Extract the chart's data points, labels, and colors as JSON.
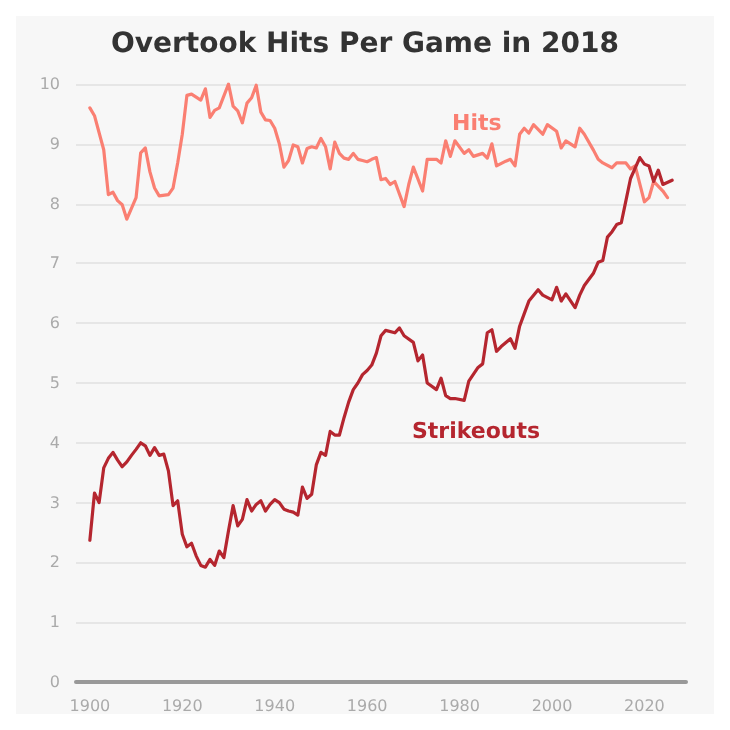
{
  "chart_data": {
    "type": "line",
    "title": "Overtook Hits Per Game in 2018",
    "xlim": [
      1897,
      2029
    ],
    "xticks": [
      1900,
      1920,
      1940,
      1960,
      1980,
      2000,
      2020
    ],
    "ylim": [
      0,
      10
    ],
    "yticks": [
      0,
      1,
      2,
      3,
      4,
      5,
      6,
      7,
      8,
      9,
      10
    ],
    "grid": "y",
    "marker": "none",
    "line_style": "solid",
    "annotations": [
      "Hits",
      "Strikeouts"
    ],
    "series": [
      {
        "color": "#fa7f72",
        "x": [
          1900,
          1901,
          1903,
          1904,
          1905,
          1906,
          1907,
          1908,
          1910,
          1911,
          1912,
          1913,
          1914,
          1915,
          1917,
          1918,
          1919,
          1920,
          1921,
          1922,
          1924,
          1925,
          1926,
          1927,
          1928,
          1930,
          1931,
          1932,
          1933,
          1934,
          1935,
          1936,
          1937,
          1938,
          1939,
          1940,
          1941,
          1942,
          1943,
          1944,
          1945,
          1946,
          1947,
          1948,
          1949,
          1950,
          1951,
          1952,
          1953,
          1954,
          1955,
          1956,
          1957,
          1958,
          1959,
          1960,
          1961,
          1962,
          1963,
          1964,
          1965,
          1966,
          1968,
          1969,
          1970,
          1972,
          1973,
          1975,
          1976,
          1977,
          1978,
          1979,
          1981,
          1982,
          1983,
          1985,
          1986,
          1987,
          1988,
          1990,
          1991,
          1992,
          1993,
          1994,
          1995,
          1996,
          1998,
          1999,
          2001,
          2002,
          2003,
          2005,
          2006,
          2007,
          2009,
          2010,
          2011,
          2013,
          2014,
          2016,
          2017,
          2018,
          2020,
          2021,
          2022,
          2024,
          2025
        ],
        "values": [
          9.6,
          9.47,
          8.9,
          8.15,
          8.19,
          8.05,
          7.98,
          7.74,
          8.1,
          8.85,
          8.93,
          8.53,
          8.26,
          8.13,
          8.15,
          8.26,
          8.68,
          9.16,
          9.81,
          9.83,
          9.73,
          9.92,
          9.44,
          9.56,
          9.6,
          10.0,
          9.63,
          9.55,
          9.35,
          9.68,
          9.77,
          9.98,
          9.53,
          9.4,
          9.39,
          9.26,
          9.0,
          8.61,
          8.72,
          8.98,
          8.95,
          8.68,
          8.92,
          8.95,
          8.93,
          9.09,
          8.95,
          8.58,
          9.03,
          8.84,
          8.76,
          8.74,
          8.84,
          8.74,
          8.72,
          8.7,
          8.74,
          8.77,
          8.4,
          8.42,
          8.32,
          8.37,
          7.95,
          8.32,
          8.61,
          8.21,
          8.74,
          8.74,
          8.68,
          9.05,
          8.79,
          9.05,
          8.84,
          8.9,
          8.79,
          8.84,
          8.76,
          9.0,
          8.63,
          8.71,
          8.74,
          8.63,
          9.16,
          9.26,
          9.18,
          9.32,
          9.16,
          9.32,
          9.21,
          8.93,
          9.05,
          8.95,
          9.26,
          9.16,
          8.89,
          8.74,
          8.68,
          8.6,
          8.68,
          8.68,
          8.58,
          8.63,
          8.03,
          8.1,
          8.37,
          8.21,
          8.1
        ]
      },
      {
        "color": "#b5262f",
        "x": [
          1900,
          1901,
          1902,
          1903,
          1904,
          1905,
          1906,
          1907,
          1908,
          1909,
          1910,
          1911,
          1912,
          1913,
          1914,
          1915,
          1916,
          1917,
          1918,
          1919,
          1920,
          1921,
          1922,
          1923,
          1924,
          1925,
          1926,
          1927,
          1928,
          1929,
          1930,
          1931,
          1932,
          1933,
          1934,
          1935,
          1936,
          1937,
          1938,
          1939,
          1940,
          1941,
          1942,
          1943,
          1944,
          1945,
          1946,
          1947,
          1948,
          1949,
          1950,
          1951,
          1952,
          1953,
          1954,
          1955,
          1956,
          1957,
          1958,
          1959,
          1960,
          1961,
          1962,
          1963,
          1964,
          1966,
          1967,
          1968,
          1970,
          1971,
          1972,
          1973,
          1975,
          1976,
          1977,
          1978,
          1979,
          1981,
          1982,
          1984,
          1985,
          1986,
          1987,
          1988,
          1989,
          1991,
          1992,
          1993,
          1994,
          1995,
          1997,
          1998,
          2000,
          2001,
          2002,
          2003,
          2005,
          2006,
          2007,
          2009,
          2010,
          2011,
          2012,
          2013,
          2014,
          2015,
          2016,
          2017,
          2019,
          2020,
          2021,
          2022,
          2023,
          2024,
          2026
        ],
        "values": [
          2.37,
          3.16,
          3.0,
          3.58,
          3.74,
          3.84,
          3.71,
          3.6,
          3.68,
          3.79,
          3.89,
          4.0,
          3.95,
          3.79,
          3.92,
          3.79,
          3.81,
          3.53,
          2.95,
          3.03,
          2.47,
          2.26,
          2.32,
          2.11,
          1.95,
          1.92,
          2.05,
          1.95,
          2.19,
          2.08,
          2.53,
          2.95,
          2.61,
          2.72,
          3.05,
          2.86,
          2.97,
          3.03,
          2.86,
          2.97,
          3.05,
          3.0,
          2.89,
          2.86,
          2.84,
          2.79,
          3.26,
          3.07,
          3.14,
          3.63,
          3.84,
          3.79,
          4.19,
          4.13,
          4.13,
          4.42,
          4.68,
          4.89,
          5.0,
          5.14,
          5.21,
          5.3,
          5.5,
          5.79,
          5.88,
          5.84,
          5.92,
          5.79,
          5.68,
          5.37,
          5.47,
          5.0,
          4.89,
          5.08,
          4.79,
          4.74,
          4.74,
          4.71,
          5.03,
          5.26,
          5.32,
          5.84,
          5.89,
          5.53,
          5.61,
          5.74,
          5.58,
          5.95,
          6.16,
          6.37,
          6.56,
          6.47,
          6.39,
          6.6,
          6.37,
          6.49,
          6.26,
          6.47,
          6.63,
          6.84,
          7.02,
          7.05,
          7.44,
          7.53,
          7.65,
          7.68,
          8.05,
          8.42,
          8.77,
          8.66,
          8.63,
          8.37,
          8.56,
          8.32,
          8.39
        ]
      }
    ]
  }
}
